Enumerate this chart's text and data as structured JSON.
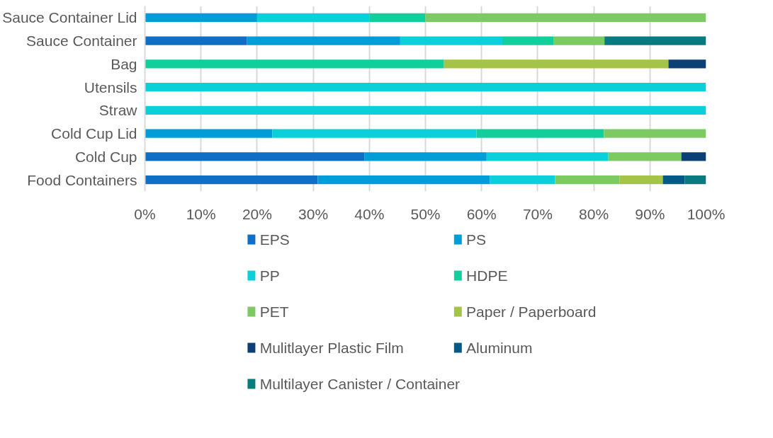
{
  "chart_data": {
    "type": "bar",
    "orientation": "horizontal",
    "stacked": true,
    "categories": [
      "Sauce Container Lid",
      "Sauce Container",
      "Bag",
      "Utensils",
      "Straw",
      "Cold Cup Lid",
      "Cold Cup",
      "Food Containers"
    ],
    "series": [
      {
        "name": "EPS",
        "color": "#0f6fc6",
        "values": [
          null,
          18.2,
          null,
          null,
          null,
          null,
          39.1,
          30.8
        ]
      },
      {
        "name": "PS",
        "color": "#009dd9",
        "values": [
          20,
          27.3,
          null,
          null,
          null,
          22.7,
          21.8,
          30.7
        ]
      },
      {
        "name": "PP",
        "color": "#0bd0d9",
        "values": [
          20,
          18.2,
          null,
          100,
          100,
          36.4,
          21.7,
          11.6
        ]
      },
      {
        "name": "HDPE",
        "color": "#10cf9b",
        "values": [
          10,
          9.1,
          53.3,
          null,
          null,
          22.7,
          null,
          null
        ]
      },
      {
        "name": "PET",
        "color": "#7cca62",
        "values": [
          50,
          9.1,
          null,
          null,
          null,
          18.2,
          13.0,
          11.5
        ]
      },
      {
        "name": "Paper / Paperboard",
        "color": "#a5c249",
        "values": [
          null,
          null,
          40,
          null,
          null,
          null,
          null,
          7.7
        ]
      },
      {
        "name": "Mulitlayer Plastic Film",
        "color": "#0b3f75",
        "values": [
          null,
          null,
          6.7,
          null,
          null,
          null,
          4.4,
          null
        ]
      },
      {
        "name": "Aluminum",
        "color": "#045a84",
        "values": [
          null,
          null,
          null,
          null,
          null,
          null,
          null,
          3.9
        ]
      },
      {
        "name": "Multilayer Canister / Container",
        "color": "#077b7f",
        "values": [
          null,
          18.1,
          null,
          null,
          null,
          null,
          null,
          3.8
        ]
      }
    ],
    "xlim": [
      0,
      100
    ],
    "xticks": [
      {
        "value": 0,
        "label": "0%"
      },
      {
        "value": 10,
        "label": "10%"
      },
      {
        "value": 20,
        "label": "20%"
      },
      {
        "value": 30,
        "label": "30%"
      },
      {
        "value": 40,
        "label": "40%"
      },
      {
        "value": 50,
        "label": "50%"
      },
      {
        "value": 60,
        "label": "60%"
      },
      {
        "value": 70,
        "label": "70%"
      },
      {
        "value": 80,
        "label": "80%"
      },
      {
        "value": 90,
        "label": "90%"
      },
      {
        "value": 100,
        "label": "100%"
      }
    ],
    "grid": "x",
    "legend": "bottom"
  }
}
